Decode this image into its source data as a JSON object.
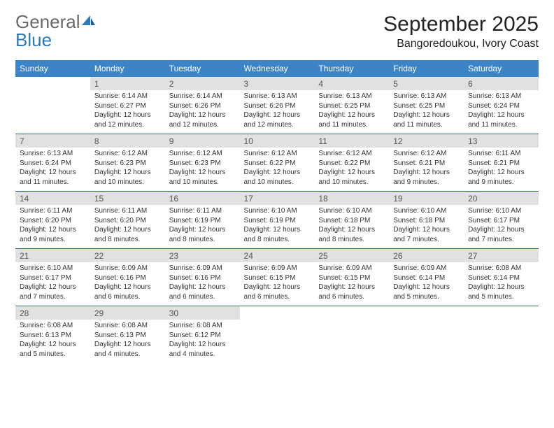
{
  "brand": {
    "part1": "General",
    "part2": "Blue"
  },
  "title": "September 2025",
  "location": "Bangoredoukou, Ivory Coast",
  "colors": {
    "header_bg": "#3d84c6",
    "header_text": "#ffffff",
    "daynum_bg": "#e1e1e1",
    "border": "#2b6aa3",
    "brand_gray": "#6a6a6a",
    "brand_blue": "#2b7bbd"
  },
  "weekdays": [
    "Sunday",
    "Monday",
    "Tuesday",
    "Wednesday",
    "Thursday",
    "Friday",
    "Saturday"
  ],
  "weeks": [
    [
      null,
      {
        "n": "1",
        "sunrise": "6:14 AM",
        "sunset": "6:27 PM",
        "daylight": "12 hours and 12 minutes."
      },
      {
        "n": "2",
        "sunrise": "6:14 AM",
        "sunset": "6:26 PM",
        "daylight": "12 hours and 12 minutes."
      },
      {
        "n": "3",
        "sunrise": "6:13 AM",
        "sunset": "6:26 PM",
        "daylight": "12 hours and 12 minutes."
      },
      {
        "n": "4",
        "sunrise": "6:13 AM",
        "sunset": "6:25 PM",
        "daylight": "12 hours and 11 minutes."
      },
      {
        "n": "5",
        "sunrise": "6:13 AM",
        "sunset": "6:25 PM",
        "daylight": "12 hours and 11 minutes."
      },
      {
        "n": "6",
        "sunrise": "6:13 AM",
        "sunset": "6:24 PM",
        "daylight": "12 hours and 11 minutes."
      }
    ],
    [
      {
        "n": "7",
        "sunrise": "6:13 AM",
        "sunset": "6:24 PM",
        "daylight": "12 hours and 11 minutes."
      },
      {
        "n": "8",
        "sunrise": "6:12 AM",
        "sunset": "6:23 PM",
        "daylight": "12 hours and 10 minutes."
      },
      {
        "n": "9",
        "sunrise": "6:12 AM",
        "sunset": "6:23 PM",
        "daylight": "12 hours and 10 minutes."
      },
      {
        "n": "10",
        "sunrise": "6:12 AM",
        "sunset": "6:22 PM",
        "daylight": "12 hours and 10 minutes."
      },
      {
        "n": "11",
        "sunrise": "6:12 AM",
        "sunset": "6:22 PM",
        "daylight": "12 hours and 10 minutes."
      },
      {
        "n": "12",
        "sunrise": "6:12 AM",
        "sunset": "6:21 PM",
        "daylight": "12 hours and 9 minutes."
      },
      {
        "n": "13",
        "sunrise": "6:11 AM",
        "sunset": "6:21 PM",
        "daylight": "12 hours and 9 minutes."
      }
    ],
    [
      {
        "n": "14",
        "sunrise": "6:11 AM",
        "sunset": "6:20 PM",
        "daylight": "12 hours and 9 minutes."
      },
      {
        "n": "15",
        "sunrise": "6:11 AM",
        "sunset": "6:20 PM",
        "daylight": "12 hours and 8 minutes."
      },
      {
        "n": "16",
        "sunrise": "6:11 AM",
        "sunset": "6:19 PM",
        "daylight": "12 hours and 8 minutes."
      },
      {
        "n": "17",
        "sunrise": "6:10 AM",
        "sunset": "6:19 PM",
        "daylight": "12 hours and 8 minutes."
      },
      {
        "n": "18",
        "sunrise": "6:10 AM",
        "sunset": "6:18 PM",
        "daylight": "12 hours and 8 minutes."
      },
      {
        "n": "19",
        "sunrise": "6:10 AM",
        "sunset": "6:18 PM",
        "daylight": "12 hours and 7 minutes."
      },
      {
        "n": "20",
        "sunrise": "6:10 AM",
        "sunset": "6:17 PM",
        "daylight": "12 hours and 7 minutes."
      }
    ],
    [
      {
        "n": "21",
        "sunrise": "6:10 AM",
        "sunset": "6:17 PM",
        "daylight": "12 hours and 7 minutes."
      },
      {
        "n": "22",
        "sunrise": "6:09 AM",
        "sunset": "6:16 PM",
        "daylight": "12 hours and 6 minutes."
      },
      {
        "n": "23",
        "sunrise": "6:09 AM",
        "sunset": "6:16 PM",
        "daylight": "12 hours and 6 minutes."
      },
      {
        "n": "24",
        "sunrise": "6:09 AM",
        "sunset": "6:15 PM",
        "daylight": "12 hours and 6 minutes."
      },
      {
        "n": "25",
        "sunrise": "6:09 AM",
        "sunset": "6:15 PM",
        "daylight": "12 hours and 6 minutes."
      },
      {
        "n": "26",
        "sunrise": "6:09 AM",
        "sunset": "6:14 PM",
        "daylight": "12 hours and 5 minutes."
      },
      {
        "n": "27",
        "sunrise": "6:08 AM",
        "sunset": "6:14 PM",
        "daylight": "12 hours and 5 minutes."
      }
    ],
    [
      {
        "n": "28",
        "sunrise": "6:08 AM",
        "sunset": "6:13 PM",
        "daylight": "12 hours and 5 minutes."
      },
      {
        "n": "29",
        "sunrise": "6:08 AM",
        "sunset": "6:13 PM",
        "daylight": "12 hours and 4 minutes."
      },
      {
        "n": "30",
        "sunrise": "6:08 AM",
        "sunset": "6:12 PM",
        "daylight": "12 hours and 4 minutes."
      },
      null,
      null,
      null,
      null
    ]
  ],
  "labels": {
    "sunrise": "Sunrise:",
    "sunset": "Sunset:",
    "daylight": "Daylight:"
  }
}
